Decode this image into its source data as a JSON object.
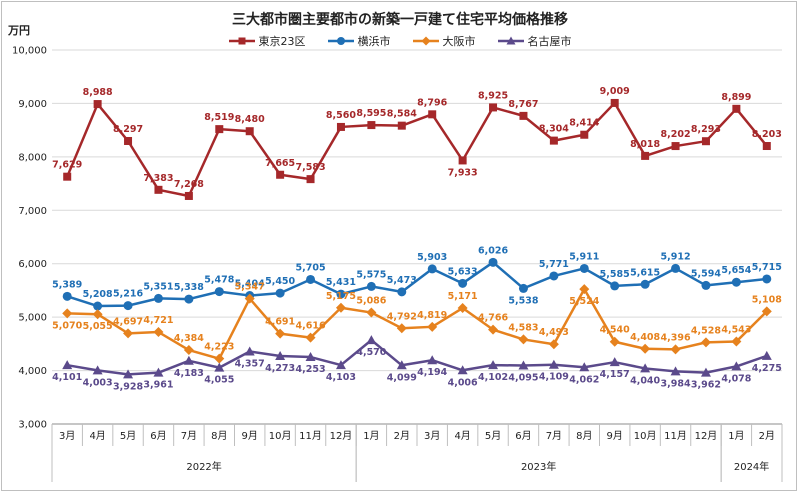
{
  "title": "三大都市圏主要都市の新築一戸建て住宅平均価格推移",
  "unit_label": "万円",
  "chart_data": {
    "type": "line",
    "title": "三大都市圏主要都市の新築一戸建て住宅平均価格推移",
    "ylabel": "万円",
    "ylim": [
      3000,
      10000
    ],
    "yticks": [
      3000,
      4000,
      5000,
      6000,
      7000,
      8000,
      9000,
      10000
    ],
    "ytick_labels": [
      "3,000",
      "4,000",
      "5,000",
      "6,000",
      "7,000",
      "8,000",
      "9,000",
      "10,000"
    ],
    "grid": true,
    "legend_position": "top-center",
    "categories": [
      "3月",
      "4月",
      "5月",
      "6月",
      "7月",
      "8月",
      "9月",
      "10月",
      "11月",
      "12月",
      "1月",
      "2月",
      "3月",
      "4月",
      "5月",
      "6月",
      "7月",
      "8月",
      "9月",
      "10月",
      "11月",
      "12月",
      "1月",
      "2月"
    ],
    "years": [
      {
        "label": "2022年",
        "start": 0,
        "end": 9
      },
      {
        "label": "2023年",
        "start": 10,
        "end": 21
      },
      {
        "label": "2024年",
        "start": 22,
        "end": 23
      }
    ],
    "series": [
      {
        "name": "東京23区",
        "color": "#a5282a",
        "marker": "square",
        "values": [
          7629,
          8988,
          8297,
          7383,
          7268,
          8519,
          8480,
          7665,
          7583,
          8560,
          8595,
          8584,
          8796,
          7933,
          8925,
          8767,
          8304,
          8414,
          9009,
          8018,
          8202,
          8293,
          8899,
          8203
        ],
        "labels": [
          "7,629",
          "8,988",
          "8,297",
          "7,383",
          "7,268",
          "8,519",
          "8,480",
          "7,665",
          "7,583",
          "8,560",
          "8,595",
          "8,584",
          "8,796",
          "7,933",
          "8,925",
          "8,767",
          "8,304",
          "8,414",
          "9,009",
          "8,018",
          "8,202",
          "8,293",
          "8,899",
          "8,203"
        ]
      },
      {
        "name": "横浜市",
        "color": "#1f6fb5",
        "marker": "circle",
        "values": [
          5389,
          5208,
          5216,
          5351,
          5338,
          5478,
          5404,
          5450,
          5705,
          5431,
          5575,
          5473,
          5903,
          5633,
          6026,
          5538,
          5771,
          5911,
          5585,
          5615,
          5912,
          5594,
          5654,
          5715
        ],
        "labels": [
          "5,389",
          "5,208",
          "5,216",
          "5,351",
          "5,338",
          "5,478",
          "5,404",
          "5,450",
          "5,705",
          "5,431",
          "5,575",
          "5,473",
          "5,903",
          "5,633",
          "6,026",
          "5,538",
          "5,771",
          "5,911",
          "5,585",
          "5,615",
          "5,912",
          "5,594",
          "5,654",
          "5,715"
        ]
      },
      {
        "name": "大阪市",
        "color": "#e6821e",
        "marker": "diamond",
        "values": [
          5070,
          5055,
          4697,
          4721,
          4384,
          4223,
          5347,
          4691,
          4616,
          5175,
          5086,
          4792,
          4819,
          5171,
          4766,
          4583,
          4493,
          5524,
          4540,
          4408,
          4396,
          4528,
          4543,
          5108
        ],
        "labels": [
          "5,070",
          "5,055",
          "4,697",
          "4,721",
          "4,384",
          "4,223",
          "5,347",
          "4,691",
          "4,616",
          "5,175",
          "5,086",
          "4,792",
          "4,819",
          "5,171",
          "4,766",
          "4,583",
          "4,493",
          "5,524",
          "4,540",
          "4,408",
          "4,396",
          "4,528",
          "4,543",
          "5,108"
        ]
      },
      {
        "name": "名古屋市",
        "color": "#5b4a8b",
        "marker": "triangle",
        "values": [
          4101,
          4003,
          3928,
          3961,
          4183,
          4055,
          4357,
          4273,
          4253,
          4103,
          4570,
          4099,
          4194,
          4006,
          4102,
          4095,
          4109,
          4062,
          4157,
          4040,
          3984,
          3962,
          4078,
          4275
        ],
        "labels": [
          "4,101",
          "4,003",
          "3,928",
          "3,961",
          "4,183",
          "4,055",
          "4,357",
          "4,273",
          "4,253",
          "4,103",
          "4,570",
          "4,099",
          "4,194",
          "4,006",
          "4,102",
          "4,095",
          "4,109",
          "4,062",
          "4,157",
          "4,040",
          "3,984",
          "3,962",
          "4,078",
          "4,275"
        ]
      }
    ]
  }
}
